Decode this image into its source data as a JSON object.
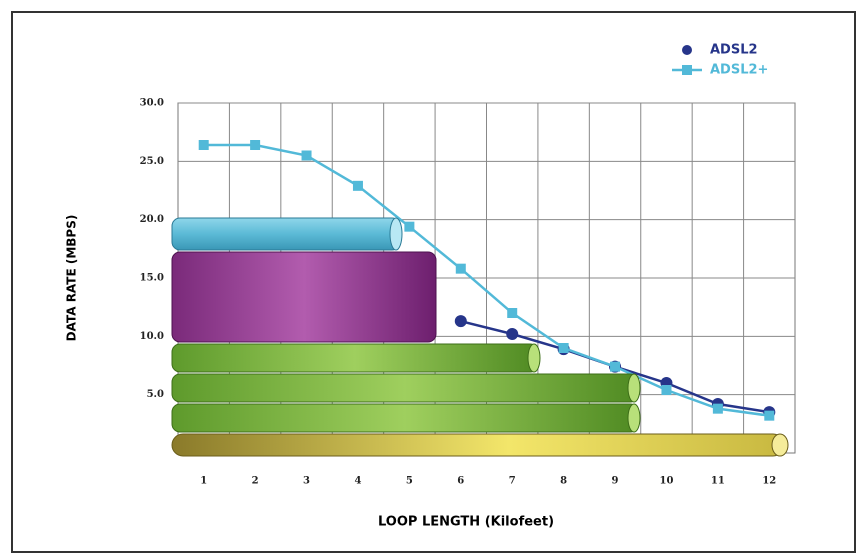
{
  "chart_data": {
    "type": "line",
    "x_label": "LOOP LENGTH (Kilofeet)",
    "y_label": "DATA RATE (MBPS)",
    "categories": [
      "1",
      "2",
      "3",
      "4",
      "5",
      "6",
      "7",
      "8",
      "9",
      "10",
      "11",
      "12"
    ],
    "series": [
      {
        "name": "ADSL2",
        "color": "#26358a",
        "marker": "circle",
        "values": [
          null,
          null,
          null,
          null,
          null,
          11.3,
          10.2,
          8.9,
          7.4,
          6.0,
          4.2,
          3.5
        ]
      },
      {
        "name": "ADSL2+",
        "color": "#52b9d8",
        "marker": "square",
        "values": [
          26.4,
          26.4,
          25.5,
          22.9,
          19.4,
          15.8,
          12.0,
          9.0,
          7.4,
          5.4,
          3.8,
          3.2
        ]
      }
    ],
    "ylim": [
      0,
      30
    ],
    "yticks": [
      {
        "value": 5,
        "label": "5.0"
      },
      {
        "value": 10,
        "label": "10.0"
      },
      {
        "value": 15,
        "label": "15.0"
      },
      {
        "value": 20,
        "label": "20.0"
      },
      {
        "value": 25,
        "label": "25.0"
      },
      {
        "value": 30,
        "label": "30.0"
      }
    ],
    "grid": true,
    "legend": "upper right"
  }
}
